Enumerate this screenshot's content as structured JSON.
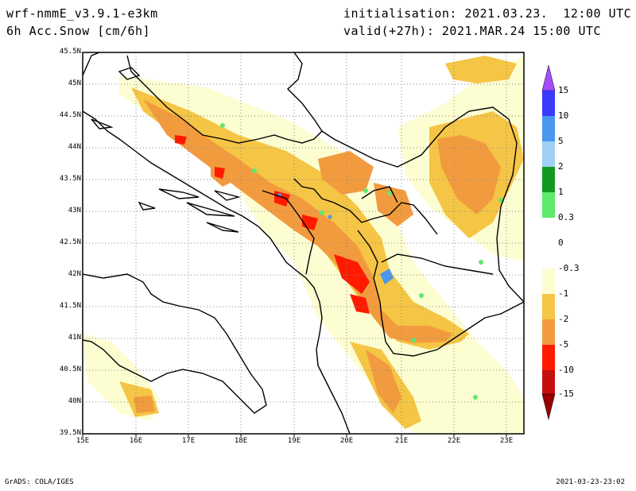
{
  "header": {
    "model": "wrf-nmmE_v3.9.1-e3km",
    "field": "6h Acc.Snow [cm/6h]",
    "initialisation": "initialisation: 2021.03.23.  12:00 UTC",
    "valid": "valid(+27h): 2021.MAR.24 15:00 UTC"
  },
  "map": {
    "lat_labels": [
      "45.5N",
      "45N",
      "44.5N",
      "44N",
      "43.5N",
      "43N",
      "42.5N",
      "42N",
      "41.5N",
      "41N",
      "40.5N",
      "40N",
      "39.5N"
    ],
    "lon_labels": [
      "15E",
      "16E",
      "17E",
      "18E",
      "19E",
      "20E",
      "21E",
      "22E",
      "23E"
    ],
    "grid": true
  },
  "colorbar": {
    "labels": [
      "15",
      "10",
      "5",
      "2",
      "1",
      "0.3",
      "0",
      "-0.3",
      "-1",
      "-2",
      "-5",
      "-10",
      "-15"
    ],
    "colors": [
      "#a64dff",
      "#3a3aff",
      "#4a97ef",
      "#9fcff5",
      "#119a20",
      "#5fe96c",
      "#ffffff",
      "#fdfdd2",
      "#f5c545",
      "#f29b3e",
      "#ff1a00",
      "#c50f0f",
      "#960000"
    ]
  },
  "footer": {
    "left": "GrADS: COLA/IGES",
    "right": "2021-03-23-23:02"
  }
}
